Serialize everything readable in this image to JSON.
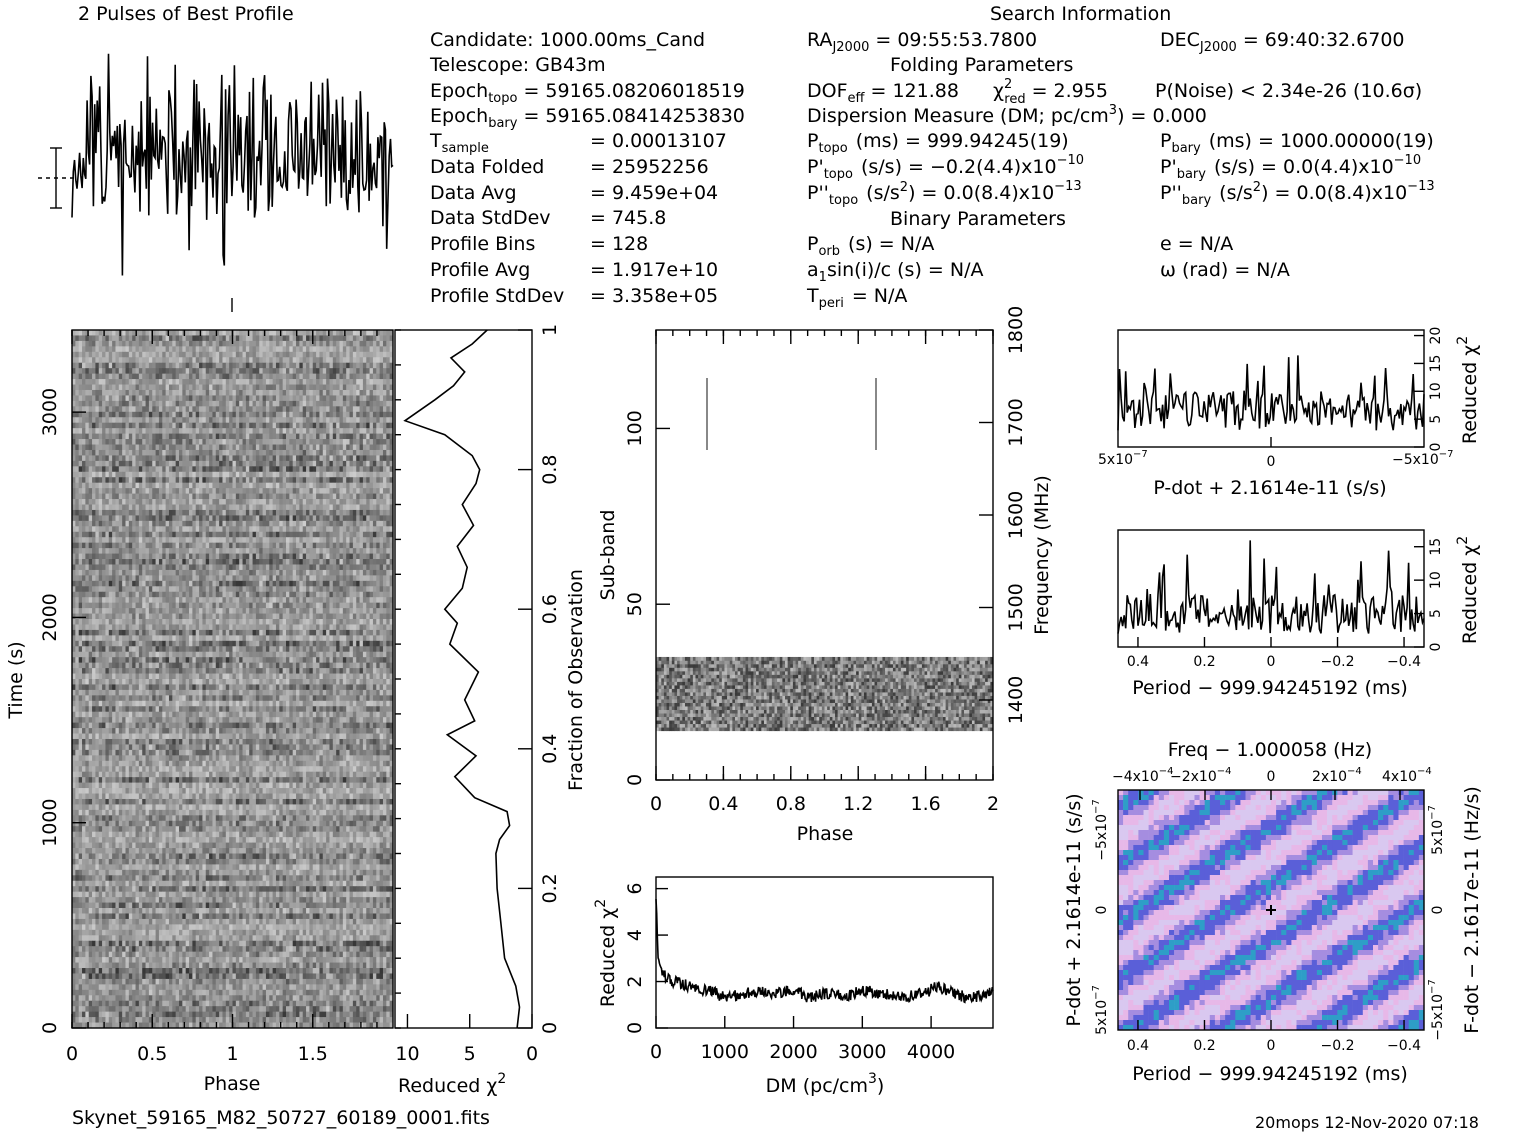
{
  "header": {
    "pulses_title": "2 Pulses of Best Profile",
    "search_title": "Search Information",
    "filename": "Skynet_59165_M82_50727_60189_0001.fits",
    "footer_right": "20mops 12-Nov-2020 07:18"
  },
  "info": {
    "candidate": "Candidate:  1000.00ms_Cand",
    "telescope": "Telescope:  GB43m",
    "epoch_topo_label": "Epoch",
    "epoch_topo_sub": "topo",
    "epoch_topo_val": "= 59165.08206018519",
    "epoch_bary_label": "Epoch",
    "epoch_bary_sub": "bary",
    "epoch_bary_val": "= 59165.08414253830",
    "tsample_label": "T",
    "tsample_sub": "sample",
    "tsample_val": "=   0.00013107",
    "data_folded": "Data Folded",
    "data_folded_val": "=   25952256",
    "data_avg": "Data Avg",
    "data_avg_val": "=   9.459e+04",
    "data_std": "Data StdDev",
    "data_std_val": "=   745.8",
    "prof_bins": "Profile Bins",
    "prof_bins_val": "=   128",
    "prof_avg": "Profile Avg",
    "prof_avg_val": "=   1.917e+10",
    "prof_std": "Profile StdDev",
    "prof_std_val": "=   3.358e+05",
    "ra_label": "RA",
    "ra_sub": "J2000",
    "ra_val": "= 09:55:53.7800",
    "dec_label": "DEC",
    "dec_sub": "J2000",
    "dec_val": "= 69:40:32.6700",
    "folding_title": "Folding Parameters",
    "dof_label": "DOF",
    "dof_sub": "eff",
    "dof_val": "= 121.88",
    "chi_label": "χ",
    "chi_sup": "2",
    "chi_sub": "red",
    "chi_val": "= 2.955",
    "pnoise": "P(Noise) < 2.34e-26   (10.6σ)",
    "dm_line": "Dispersion Measure (DM; pc/cm",
    "dm_sup": "3",
    "dm_val": ") = 0.000",
    "ptopo_label": "P",
    "ptopo_sub": "topo",
    "ptopo_val": "(ms) =  999.94245(19)",
    "pbary_label": "P",
    "pbary_sub": "bary",
    "pbary_val": "(ms) =  1000.00000(19)",
    "pdtopo_label": "P'",
    "pdtopo_sub": "topo",
    "pdtopo_val": "(s/s) = −0.2(4.4)x10",
    "pdtopo_exp": "−10",
    "pdbary_label": "P'",
    "pdbary_sub": "bary",
    "pdbary_val": "(s/s) = 0.0(4.4)x10",
    "pdbary_exp": "−10",
    "pddtopo_label": "P''",
    "pddtopo_sub": "topo",
    "pddtopo_val": "(s/s",
    "pddtopo_val2": ") = 0.0(8.4)x10",
    "pddtopo_exp": "−13",
    "pddbary_label": "P''",
    "pddbary_sub": "bary",
    "pddbary_val": "(s/s",
    "pddbary_val2": ") = 0.0(8.4)x10",
    "pddbary_exp": "−13",
    "sq": "2",
    "binary_title": "Binary Parameters",
    "porb_label": "P",
    "porb_sub": "orb",
    "porb_val": "(s) = N/A",
    "ecc": "e = N/A",
    "asini_label": "a",
    "asini_sub": "1",
    "asini_val": "sin(i)/c (s) = N/A",
    "omega": "ω (rad) = N/A",
    "tperi_label": "T",
    "tperi_sub": "peri",
    "tperi_val": "= N/A"
  },
  "chart_data": [
    {
      "type": "line",
      "name": "profile",
      "title": "2 Pulses of Best Profile",
      "x_range": [
        0,
        2
      ],
      "n_points": 256
    },
    {
      "type": "heatmap",
      "name": "time-phase",
      "xlabel": "Phase",
      "ylabel": "Time (s)",
      "xticks": [
        "0",
        "0.5",
        "1",
        "1.5"
      ],
      "yticks": [
        "0",
        "1000",
        "2000",
        "3000"
      ],
      "xlim": [
        0,
        2
      ],
      "ylim": [
        0,
        3400
      ],
      "right_axis_label": "Fraction of Observation",
      "right_ticks": [
        "0",
        "0.2",
        "0.4",
        "0.6",
        "0.8",
        "1"
      ]
    },
    {
      "type": "line",
      "name": "chi-vs-time",
      "xlabel": "Reduced χ",
      "xlabel_sup": "2",
      "xticks": [
        "10",
        "5",
        "0"
      ],
      "xlim": [
        11,
        0
      ],
      "x": [
        1.2,
        1.0,
        1.3,
        2.2,
        2.5,
        2.8,
        2.9,
        2.6,
        1.8,
        2.0,
        4.6,
        6.2,
        4.5,
        6.8,
        4.6,
        5.4,
        4.3,
        6.6,
        6.0,
        7.0,
        5.6,
        5.2,
        6.0,
        4.7,
        5.6,
        4.5,
        4.2,
        4.8,
        7.0,
        10.2,
        7.8,
        6.3,
        5.4,
        6.5,
        4.8,
        3.6
      ],
      "y": [
        0.0,
        0.03,
        0.06,
        0.1,
        0.15,
        0.2,
        0.25,
        0.27,
        0.29,
        0.31,
        0.33,
        0.36,
        0.39,
        0.42,
        0.44,
        0.47,
        0.51,
        0.55,
        0.58,
        0.6,
        0.63,
        0.66,
        0.69,
        0.72,
        0.75,
        0.78,
        0.8,
        0.82,
        0.85,
        0.87,
        0.9,
        0.92,
        0.94,
        0.96,
        0.98,
        1.0
      ]
    },
    {
      "type": "heatmap",
      "name": "subband-phase",
      "xlabel": "Phase",
      "ylabel": "Sub-band",
      "right_axis_label": "Frequency (MHz)",
      "xticks": [
        "0",
        "0.4",
        "0.8",
        "1.2",
        "1.6",
        "2"
      ],
      "yticks": [
        "0",
        "50",
        "100"
      ],
      "right_ticks": [
        "1400",
        "1500",
        "1600",
        "1700",
        "1800"
      ],
      "xlim": [
        0,
        2
      ],
      "ylim": [
        0,
        128
      ],
      "occupied_subbands": [
        14,
        35
      ]
    },
    {
      "type": "line",
      "name": "chi-vs-dm",
      "xlabel": "DM (pc/cm",
      "xlabel_sup": "3",
      "xlabel_end": ")",
      "ylabel": "Reduced χ",
      "ylabel_sup": "2",
      "xticks": [
        "0",
        "1000",
        "2000",
        "3000",
        "4000"
      ],
      "yticks": [
        "0",
        "2",
        "4",
        "6"
      ],
      "xlim": [
        0,
        4900
      ],
      "ylim": [
        0,
        6.5
      ],
      "x": [
        0,
        30,
        60,
        100,
        150,
        250,
        400,
        600,
        800,
        1000,
        1200,
        1500,
        1800,
        2000,
        2200,
        2500,
        2800,
        3000,
        3300,
        3600,
        3900,
        4100,
        4400,
        4600,
        4900
      ],
      "y": [
        5.8,
        3.2,
        2.6,
        2.3,
        2.2,
        2.0,
        1.9,
        1.7,
        1.6,
        1.3,
        1.4,
        1.6,
        1.5,
        1.7,
        1.3,
        1.5,
        1.4,
        1.6,
        1.5,
        1.3,
        1.5,
        1.8,
        1.4,
        1.3,
        1.6
      ]
    },
    {
      "type": "line",
      "name": "chi-vs-pdot",
      "xlabel": "P-dot + 2.1614e-11 (s/s)",
      "ylabel": "Reduced χ",
      "ylabel_sup": "2",
      "xticks_left": "5x10",
      "xticks_left_exp": "−7",
      "xticks_mid": "0",
      "xticks_right": "−5x10",
      "xticks_right_exp": "−7",
      "yticks": [
        "0",
        "5",
        "10",
        "15",
        "20"
      ],
      "ylim": [
        0,
        21
      ]
    },
    {
      "type": "line",
      "name": "chi-vs-period",
      "xlabel": "Period − 999.94245192 (ms)",
      "ylabel": "Reduced χ",
      "ylabel_sup": "2",
      "xticks": [
        "0.4",
        "0.2",
        "0",
        "−0.2",
        "−0.4"
      ],
      "yticks": [
        "0",
        "5",
        "10",
        "15"
      ],
      "xlim": [
        0.46,
        -0.46
      ],
      "ylim": [
        0,
        17.5
      ]
    },
    {
      "type": "heatmap",
      "name": "p-pdot",
      "title": "Freq − 1.000058 (Hz)",
      "xlabel": "Period − 999.94245192 (ms)",
      "ylabel": "P-dot + 2.1614e-11 (s/s)",
      "right_label": "F-dot − 2.1617e-11 (Hz/s)",
      "xticks": [
        "0.4",
        "0.2",
        "0",
        "−0.2",
        "−0.4"
      ],
      "top_ticks": [
        "−4x10",
        "−2x10",
        "0",
        "2x10",
        "4x10"
      ],
      "top_exp": "−4",
      "left_ticks_top": "−5x10",
      "left_ticks_mid": "0",
      "left_ticks_bot": "5x10",
      "left_exp": "−7",
      "right_ticks_top": "5x10",
      "right_ticks_mid": "0",
      "right_ticks_bot": "−5x10",
      "right_exp": "−7",
      "colors": [
        "#d9c8f0",
        "#a58de0",
        "#5a5fd8",
        "#2e9ec7",
        "#e7b8e8"
      ]
    }
  ]
}
